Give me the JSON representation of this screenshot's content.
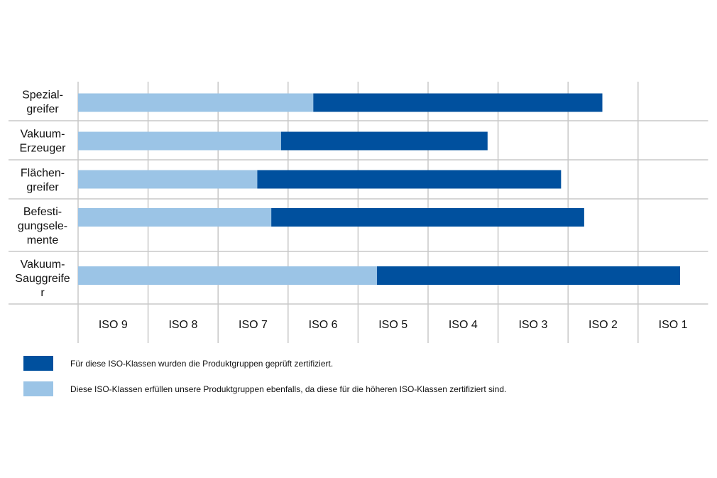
{
  "chart_data": {
    "type": "bar",
    "orientation": "horizontal",
    "stacked": true,
    "title": "",
    "xlabel": "",
    "ylabel": "",
    "x_ticks": [
      "ISO 9",
      "ISO 8",
      "ISO 7",
      "ISO 6",
      "ISO 5",
      "ISO 4",
      "ISO 3",
      "ISO 2",
      "ISO 1"
    ],
    "x_range_columns": [
      0,
      9
    ],
    "categories": [
      [
        "Spezial-",
        "greifer"
      ],
      [
        "Vakuum-",
        "Erzeuger"
      ],
      [
        "Flächen-",
        "greifer"
      ],
      [
        "Befesti-",
        "gungsele-",
        "mente"
      ],
      [
        "Vakuum-",
        "Sauggreife",
        "r"
      ]
    ],
    "value_unit": "position on ISO axis in column units from left edge of ISO 9 (0) to right edge of ISO 1 (9)",
    "series": [
      {
        "name": "Diese ISO-Klassen erfüllen unsere Produktgruppen ebenfalls, da diese für die höheren ISO-Klassen zertifiziert sind.",
        "color": "#9bc4e6",
        "start": [
          0,
          0,
          0,
          0,
          0
        ],
        "end": [
          3.36,
          2.9,
          2.56,
          2.76,
          4.27
        ]
      },
      {
        "name": "Für diese ISO-Klassen wurden die Produktgruppen geprüft zertifiziert.",
        "color": "#00509e",
        "start": [
          3.36,
          2.9,
          2.56,
          2.76,
          4.27
        ],
        "end": [
          7.49,
          5.85,
          6.9,
          7.23,
          8.6
        ]
      }
    ],
    "grid": true,
    "legend_position": "bottom-left"
  },
  "legend": [
    {
      "label": "Für diese ISO-Klassen wurden die Produktgruppen geprüft zertifiziert.",
      "color": "#00509e"
    },
    {
      "label": "Diese ISO-Klassen erfüllen unsere Produktgruppen ebenfalls, da diese für die höheren ISO-Klassen zertifiziert sind.",
      "color": "#9bc4e6"
    }
  ],
  "grid_color": "#c8c8c8"
}
